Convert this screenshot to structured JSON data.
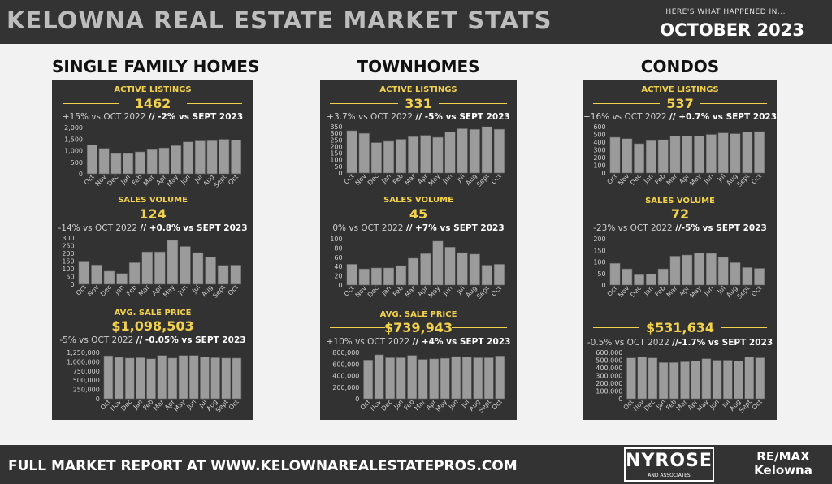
{
  "header": {
    "title": "KELOWNA REAL ESTATE MARKET STATS",
    "kicker": "HERE'S WHAT HAPPENED IN...",
    "period": "OCTOBER 2023"
  },
  "footer": {
    "text": "FULL MARKET REPORT AT WWW.KELOWNAREALESTATEPROS.COM",
    "logo": "NYROSE",
    "logo_sub": "AND ASSOCIATES",
    "brokerage_line1": "RE/MAX",
    "brokerage_line2": "Kelowna"
  },
  "colors": {
    "panel": "#323232",
    "accent": "#f2d24c",
    "bar": "#9b9b9b",
    "background": "#f2f2f2"
  },
  "categories": [
    "Oct",
    "Nov",
    "Dec",
    "Jan",
    "Feb",
    "Mar",
    "Apr",
    "May",
    "Jun",
    "Jul",
    "Aug",
    "Sept",
    "Oct"
  ],
  "panels": {
    "single": {
      "title": "SINGLE FAMILY HOMES",
      "listings": {
        "label": "ACTIVE LISTINGS",
        "value": "1462",
        "cmp_a": "+15% vs OCT 2022",
        "cmp_b": "// -2% vs SEPT 2023"
      },
      "sales": {
        "label": "SALES VOLUME",
        "value": "124",
        "cmp_a": "-14% vs OCT 2022",
        "cmp_b": "// +0.8% vs SEPT 2023"
      },
      "price": {
        "label": "AVG. SALE PRICE",
        "value": "$1,098,503",
        "cmp_a": "-5% vs OCT 2022",
        "cmp_b": "// -0.05% vs SEPT 2023"
      }
    },
    "town": {
      "title": "TOWNHOMES",
      "listings": {
        "label": "ACTIVE LISTINGS",
        "value": "331",
        "cmp_a": "+3.7% vs OCT 2022",
        "cmp_b": "// -5% vs SEPT 2023"
      },
      "sales": {
        "label": "SALES VOLUME",
        "value": "45",
        "cmp_a": "0% vs OCT 2022",
        "cmp_b": "// +7% vs SEPT 2023"
      },
      "price": {
        "label": "AVG. SALE PRICE",
        "value": "$739,943",
        "cmp_a": "+10% vs OCT 2022",
        "cmp_b": "// +4% vs SEPT 2023"
      }
    },
    "condo": {
      "title": "CONDOS",
      "listings": {
        "label": "ACTIVE LISTINGS",
        "value": "537",
        "cmp_a": "+16% vs OCT  2022",
        "cmp_b": "// +0.7% vs SEPT 2023"
      },
      "sales": {
        "label": "SALES VOLUME",
        "value": "72",
        "cmp_a": "-23% vs OCT 2022",
        "cmp_b": "//-5% vs SEPT 2023"
      },
      "price": {
        "label": "",
        "value": "$531,634",
        "cmp_a": "-0.5% vs OCT 2022",
        "cmp_b": "//-1.7% vs SEPT 2023"
      }
    }
  },
  "chart_data": [
    {
      "id": "single-listings",
      "type": "bar",
      "categories": [
        "Oct",
        "Nov",
        "Dec",
        "Jan",
        "Feb",
        "Mar",
        "Apr",
        "May",
        "Jun",
        "Jul",
        "Aug",
        "Sept",
        "Oct"
      ],
      "values": [
        1250,
        1100,
        880,
        880,
        950,
        1050,
        1120,
        1220,
        1380,
        1420,
        1430,
        1490,
        1462
      ],
      "yticks": [
        "0",
        "500",
        "1,000",
        "1,500",
        "2,000"
      ],
      "ylim": [
        0,
        2000
      ]
    },
    {
      "id": "single-sales",
      "type": "bar",
      "categories": [
        "Oct",
        "Nov",
        "Dec",
        "Jan",
        "Feb",
        "Mar",
        "Apr",
        "May",
        "Jun",
        "Jul",
        "Aug",
        "Sept",
        "Oct"
      ],
      "values": [
        145,
        125,
        85,
        70,
        140,
        210,
        210,
        285,
        245,
        205,
        175,
        123,
        124
      ],
      "yticks": [
        "0",
        "50",
        "100",
        "150",
        "200",
        "250",
        "300"
      ],
      "ylim": [
        0,
        300
      ]
    },
    {
      "id": "single-price",
      "type": "bar",
      "categories": [
        "Oct",
        "Nov",
        "Dec",
        "Jan",
        "Feb",
        "Mar",
        "Apr",
        "May",
        "Jun",
        "Jul",
        "Aug",
        "Sept",
        "Oct"
      ],
      "values": [
        1160000,
        1120000,
        1100000,
        1110000,
        1080000,
        1170000,
        1100000,
        1170000,
        1170000,
        1130000,
        1110000,
        1100000,
        1098503
      ],
      "yticks": [
        "0",
        "250,000",
        "500,000",
        "750,000",
        "1,000,000",
        "1,250,000"
      ],
      "ylim": [
        0,
        1250000
      ]
    },
    {
      "id": "town-listings",
      "type": "bar",
      "categories": [
        "Oct",
        "Nov",
        "Dec",
        "Jan",
        "Feb",
        "Mar",
        "Apr",
        "May",
        "Jun",
        "Jul",
        "Aug",
        "Sept",
        "Oct"
      ],
      "values": [
        320,
        300,
        230,
        240,
        255,
        275,
        285,
        270,
        310,
        335,
        330,
        350,
        331
      ],
      "yticks": [
        "0",
        "50",
        "100",
        "150",
        "200",
        "250",
        "300",
        "350"
      ],
      "ylim": [
        0,
        350
      ]
    },
    {
      "id": "town-sales",
      "type": "bar",
      "categories": [
        "Oct",
        "Nov",
        "Dec",
        "Jan",
        "Feb",
        "Mar",
        "Apr",
        "May",
        "Jun",
        "Jul",
        "Aug",
        "Sept",
        "Oct"
      ],
      "values": [
        45,
        35,
        37,
        37,
        42,
        58,
        68,
        95,
        82,
        70,
        67,
        43,
        45
      ],
      "yticks": [
        "0",
        "20",
        "40",
        "60",
        "80",
        "100"
      ],
      "ylim": [
        0,
        100
      ]
    },
    {
      "id": "town-price",
      "type": "bar",
      "categories": [
        "Oct",
        "Nov",
        "Dec",
        "Jan",
        "Feb",
        "Mar",
        "Apr",
        "May",
        "Jun",
        "Jul",
        "Aug",
        "Sept",
        "Oct"
      ],
      "values": [
        670000,
        760000,
        710000,
        710000,
        750000,
        680000,
        690000,
        700000,
        730000,
        720000,
        710000,
        710000,
        739943
      ],
      "yticks": [
        "0",
        "200,000",
        "400,000",
        "600,000",
        "800,000"
      ],
      "ylim": [
        0,
        800000
      ]
    },
    {
      "id": "condo-listings",
      "type": "bar",
      "categories": [
        "Oct",
        "Nov",
        "Dec",
        "Jan",
        "Feb",
        "Mar",
        "Apr",
        "May",
        "Jun",
        "Jul",
        "Aug",
        "Sept",
        "Oct"
      ],
      "values": [
        463,
        445,
        380,
        420,
        430,
        480,
        480,
        480,
        500,
        520,
        510,
        533,
        537
      ],
      "yticks": [
        "0",
        "100",
        "200",
        "300",
        "400",
        "500",
        "600"
      ],
      "ylim": [
        0,
        600
      ]
    },
    {
      "id": "condo-sales",
      "type": "bar",
      "categories": [
        "Oct",
        "Nov",
        "Dec",
        "Jan",
        "Feb",
        "Mar",
        "Apr",
        "May",
        "Jun",
        "Jul",
        "Aug",
        "Sept",
        "Oct"
      ],
      "values": [
        94,
        70,
        45,
        48,
        70,
        125,
        130,
        138,
        137,
        120,
        97,
        76,
        72
      ],
      "yticks": [
        "0",
        "50",
        "100",
        "150",
        "200"
      ],
      "ylim": [
        0,
        200
      ]
    },
    {
      "id": "condo-price",
      "type": "bar",
      "categories": [
        "Oct",
        "Nov",
        "Dec",
        "Jan",
        "Feb",
        "Mar",
        "Apr",
        "May",
        "Jun",
        "Jul",
        "Aug",
        "Sept",
        "Oct"
      ],
      "values": [
        530000,
        540000,
        530000,
        470000,
        470000,
        480000,
        490000,
        520000,
        500000,
        500000,
        490000,
        540000,
        531634
      ],
      "yticks": [
        "0",
        "100,000",
        "200,000",
        "300,000",
        "400,000",
        "500,000",
        "600,000"
      ],
      "ylim": [
        0,
        600000
      ]
    }
  ]
}
